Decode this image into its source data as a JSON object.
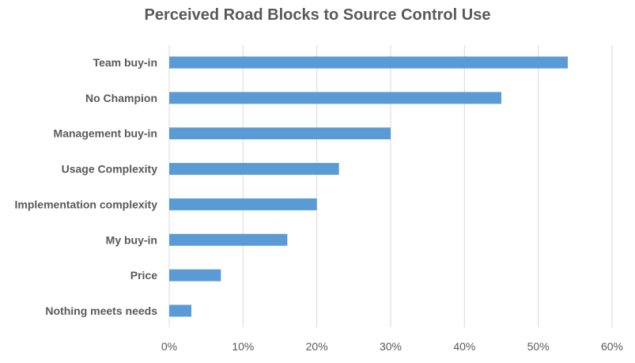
{
  "chart_data": {
    "type": "bar",
    "orientation": "horizontal",
    "title": "Perceived Road Blocks to Source Control Use",
    "categories": [
      "Team buy-in",
      "No Champion",
      "Management buy-in",
      "Usage Complexity",
      "Implementation complexity",
      "My buy-in",
      "Price",
      "Nothing meets needs"
    ],
    "values": [
      0.54,
      0.45,
      0.3,
      0.23,
      0.2,
      0.16,
      0.07,
      0.03
    ],
    "xlim": [
      0,
      0.6
    ],
    "x_ticks": [
      "0%",
      "10%",
      "20%",
      "30%",
      "40%",
      "50%",
      "60%"
    ],
    "grid": "vertical",
    "bar_color": "#5b9bd5",
    "legend": "none"
  }
}
